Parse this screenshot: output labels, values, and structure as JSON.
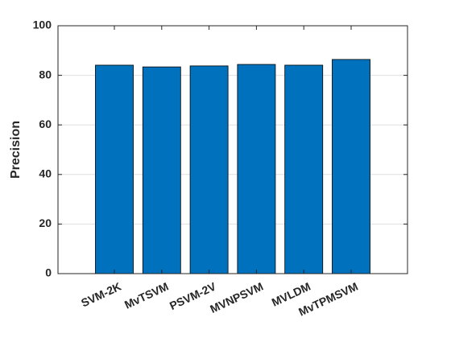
{
  "chart_data": {
    "type": "bar",
    "y_label": "Precision",
    "categories": [
      "SVM-2K",
      "MvTSVM",
      "PSVM-2V",
      "MVNPSVM",
      "MVLDM",
      "MvTPMSVM"
    ],
    "values": [
      84.1,
      83.4,
      83.8,
      84.4,
      84.1,
      86.4
    ],
    "color": "#0072bd",
    "ylim": [
      0,
      100
    ],
    "yticks": [
      0,
      20,
      40,
      60,
      80,
      100
    ],
    "grid": true
  }
}
